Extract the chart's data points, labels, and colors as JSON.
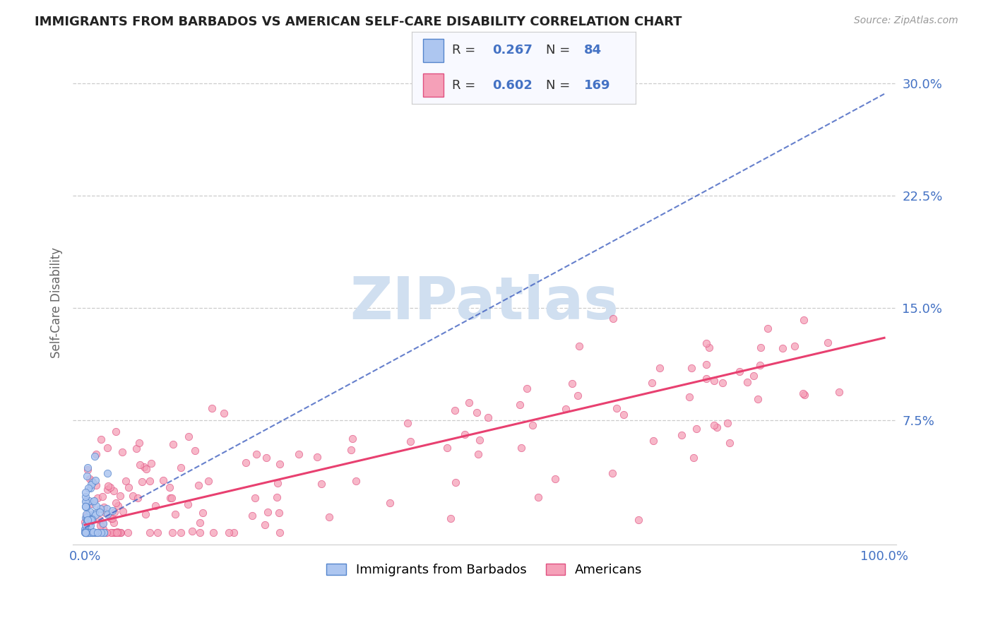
{
  "title": "IMMIGRANTS FROM BARBADOS VS AMERICAN SELF-CARE DISABILITY CORRELATION CHART",
  "source": "Source: ZipAtlas.com",
  "ylabel": "Self-Care Disability",
  "xlim": [
    0.0,
    1.0
  ],
  "ylim": [
    0.0,
    0.315
  ],
  "yticks": [
    0.075,
    0.15,
    0.225,
    0.3
  ],
  "ytick_labels": [
    "7.5%",
    "15.0%",
    "22.5%",
    "30.0%"
  ],
  "xticks": [
    0.0,
    1.0
  ],
  "xtick_labels": [
    "0.0%",
    "100.0%"
  ],
  "blue_R": 0.267,
  "blue_N": 84,
  "pink_R": 0.602,
  "pink_N": 169,
  "blue_color": "#adc6f0",
  "pink_color": "#f5a0b8",
  "blue_edge_color": "#5585cc",
  "pink_edge_color": "#e05080",
  "blue_line_color": "#4060c0",
  "pink_line_color": "#e84070",
  "grid_color": "#cccccc",
  "title_color": "#222222",
  "axis_label_color": "#666666",
  "tick_color": "#4472c4",
  "watermark_color": "#d0dff0",
  "legend_bg_color": "#f8f9ff",
  "legend_border_color": "#cccccc",
  "background_color": "#ffffff",
  "blue_seed": 42,
  "pink_seed": 7,
  "blue_line_slope": 0.29,
  "blue_line_intercept": 0.003,
  "pink_line_slope": 0.125,
  "pink_line_intercept": 0.005
}
